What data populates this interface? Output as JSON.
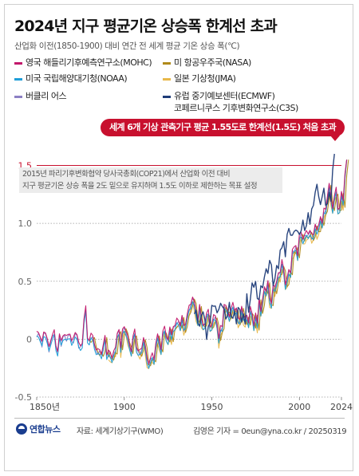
{
  "header": {
    "title": "2024년 지구 평균기온 상승폭 한계선 초과",
    "subtitle": "산업화 이전(1850-1900) 대비 연간 전 세계 평균 기온 상승 폭(℃)"
  },
  "callout": "세계 6개 기상 관측기구 평균 1.55도로 한계선(1.5도) 처음 초과",
  "note": {
    "line1": "2015년 파리기후변화협약 당사국총회(COP21)에서 산업화 이전 대비",
    "line2": "지구 평균기온 상승 폭을 2도 밑으로 유지하며 1.5도 이하로 제한하는 목표 설정"
  },
  "footer": {
    "logo": "연합뉴스",
    "source": "자료: 세계기상기구(WMO)",
    "credit": "김영은 기자 = 0eun@yna.co.kr / 20250319"
  },
  "colors": {
    "MOHC": "#c2186b",
    "NASA": "#b08a1a",
    "NOAA": "#1f9ed8",
    "JMA": "#e8b84a",
    "Berkeley": "#8c80c4",
    "ECMWF": "#1f3c78",
    "threshold": "#c8102e"
  },
  "chart_data": {
    "type": "line",
    "title": "2024년 지구 평균기온 상승폭 한계선 초과",
    "subtitle": "산업화 이전(1850-1900) 대비 연간 전 세계 평균 기온 상승 폭(℃)",
    "xlabel": "",
    "ylabel": "",
    "xlim": [
      1850,
      2024
    ],
    "ylim": [
      -0.5,
      1.6
    ],
    "x_ticks": [
      {
        "value": 1850,
        "label": "1850년"
      },
      {
        "value": 1900,
        "label": "1900"
      },
      {
        "value": 1950,
        "label": "1950"
      },
      {
        "value": 2000,
        "label": "2000"
      },
      {
        "value": 2024,
        "label": "2024"
      }
    ],
    "y_ticks": [
      {
        "value": -0.5,
        "label": "-0.5"
      },
      {
        "value": 0,
        "label": "0"
      },
      {
        "value": 0.5,
        "label": "0.5"
      },
      {
        "value": 1.0,
        "label": "1.0"
      },
      {
        "value": 1.5,
        "label": "1.5"
      }
    ],
    "threshold": {
      "value": 1.5,
      "label": "1.5"
    },
    "grid": "horizontal-dotted",
    "legend_position": "top",
    "series": [
      {
        "name": "영국 해들리기후예측연구소(MOHC)",
        "key": "MOHC",
        "start": 1850,
        "offset": 0.02,
        "values": [
          0.03,
          0.05,
          0.0,
          -0.05,
          0.06,
          0.04,
          -0.02,
          -0.1,
          -0.02,
          0.02,
          0.05,
          -0.06,
          -0.12,
          0.02,
          -0.05,
          0.02,
          0.02,
          0.0,
          0.04,
          0.03,
          -0.04,
          -0.02,
          0.05,
          0.02,
          -0.06,
          -0.06,
          -0.05,
          0.15,
          0.25,
          0.0,
          -0.03,
          0.02,
          0.03,
          -0.06,
          -0.12,
          -0.12,
          -0.1,
          -0.15,
          -0.08,
          0.03,
          -0.15,
          -0.12,
          -0.15,
          -0.17,
          -0.12,
          -0.1,
          0.05,
          0.07,
          -0.1,
          0.05,
          0.1,
          0.05,
          0.0,
          -0.05,
          -0.12,
          0.0,
          0.05,
          -0.08,
          -0.12,
          -0.12,
          -0.08,
          0.0,
          -0.08,
          -0.2,
          -0.22,
          -0.18,
          -0.15,
          -0.18,
          -0.05,
          0.02,
          -0.05,
          -0.1,
          0.05,
          0.08,
          0.02,
          -0.02,
          0.08,
          0.0,
          0.1,
          0.1,
          0.15,
          0.16,
          0.1,
          0.18,
          0.08,
          0.12,
          0.2,
          0.26,
          0.3,
          0.35,
          0.3,
          0.2,
          0.15,
          0.28,
          0.15,
          0.12,
          0.12,
          0.2,
          0.22,
          0.1,
          0.1,
          0.18,
          0.2,
          0.12,
          -0.02,
          0.08,
          0.1,
          0.28,
          0.26,
          0.25,
          0.18,
          0.24,
          0.28,
          0.24,
          0.25,
          0.15,
          0.17,
          0.27,
          0.18,
          0.15,
          0.2,
          0.12,
          0.25,
          0.22,
          0.1,
          0.2,
          0.1,
          0.35,
          0.22,
          0.32,
          0.45,
          0.4,
          0.48,
          0.32,
          0.3,
          0.45,
          0.42,
          0.5,
          0.56,
          0.55,
          0.65,
          0.6,
          0.45,
          0.5,
          0.6,
          0.56,
          0.75,
          0.76,
          0.8,
          0.7,
          0.88,
          0.92,
          0.85,
          0.88,
          0.9,
          0.9,
          0.92,
          0.88,
          0.9,
          0.98,
          0.92,
          0.95,
          1.05,
          0.98,
          1.1,
          1.12,
          1.22,
          1.32,
          1.2,
          1.12,
          1.22,
          1.28,
          1.12,
          1.12,
          1.25,
          1.16,
          1.42,
          1.55
        ]
      },
      {
        "name": "미 항공우주국(NASA)",
        "key": "NASA",
        "start": 1880,
        "offset": -0.01,
        "values": [
          0.0,
          -0.03,
          0.02,
          0.03,
          -0.06,
          -0.12,
          -0.12,
          -0.1,
          -0.15,
          -0.08,
          0.03,
          -0.15,
          -0.12,
          -0.15,
          -0.17,
          -0.12,
          -0.1,
          0.05,
          0.07,
          -0.1,
          0.05,
          0.1,
          0.05,
          0.0,
          -0.05,
          -0.12,
          0.0,
          0.05,
          -0.08,
          -0.12,
          -0.12,
          -0.08,
          0.0,
          -0.08,
          -0.2,
          -0.22,
          -0.18,
          -0.15,
          -0.18,
          -0.05,
          0.02,
          -0.05,
          -0.1,
          0.05,
          0.08,
          0.02,
          -0.02,
          0.08,
          0.0,
          0.1,
          0.1,
          0.15,
          0.16,
          0.1,
          0.18,
          0.08,
          0.12,
          0.2,
          0.26,
          0.3,
          0.35,
          0.3,
          0.2,
          0.15,
          0.28,
          0.15,
          0.12,
          0.12,
          0.2,
          0.22,
          0.1,
          0.1,
          0.18,
          0.2,
          0.12,
          -0.02,
          0.08,
          0.1,
          0.28,
          0.26,
          0.25,
          0.18,
          0.24,
          0.28,
          0.24,
          0.25,
          0.15,
          0.17,
          0.27,
          0.18,
          0.15,
          0.2,
          0.12,
          0.25,
          0.22,
          0.1,
          0.2,
          0.1,
          0.35,
          0.22,
          0.32,
          0.45,
          0.4,
          0.48,
          0.32,
          0.3,
          0.45,
          0.42,
          0.5,
          0.56,
          0.55,
          0.65,
          0.6,
          0.45,
          0.5,
          0.6,
          0.56,
          0.75,
          0.76,
          0.8,
          0.7,
          0.88,
          0.92,
          0.85,
          0.88,
          0.9,
          0.9,
          0.92,
          0.88,
          0.9,
          0.98,
          0.92,
          0.95,
          1.05,
          0.98,
          1.1,
          1.12,
          1.22,
          1.32,
          1.2,
          1.12,
          1.22,
          1.28,
          1.12,
          1.12,
          1.25,
          1.16,
          1.42,
          1.55
        ]
      },
      {
        "name": "미국 국립해양대기청(NOAA)",
        "key": "NOAA",
        "start": 1850,
        "offset": -0.02,
        "values": [
          0.03,
          0.05,
          0.0,
          -0.05,
          0.06,
          0.04,
          -0.02,
          -0.1,
          -0.02,
          0.02,
          0.05,
          -0.06,
          -0.12,
          0.02,
          -0.05,
          0.02,
          0.02,
          0.0,
          0.04,
          0.03,
          -0.04,
          -0.02,
          0.05,
          0.02,
          -0.06,
          -0.06,
          -0.05,
          0.15,
          0.25,
          0.0,
          -0.03,
          0.02,
          0.03,
          -0.06,
          -0.12,
          -0.12,
          -0.1,
          -0.15,
          -0.08,
          0.03,
          -0.15,
          -0.12,
          -0.15,
          -0.17,
          -0.12,
          -0.1,
          0.05,
          0.07,
          -0.1,
          0.05,
          0.1,
          0.05,
          0.0,
          -0.05,
          -0.12,
          0.0,
          0.05,
          -0.08,
          -0.12,
          -0.12,
          -0.08,
          0.0,
          -0.08,
          -0.2,
          -0.22,
          -0.18,
          -0.15,
          -0.18,
          -0.05,
          0.02,
          -0.05,
          -0.1,
          0.05,
          0.08,
          0.02,
          -0.02,
          0.08,
          0.0,
          0.1,
          0.1,
          0.15,
          0.16,
          0.1,
          0.18,
          0.08,
          0.12,
          0.2,
          0.26,
          0.3,
          0.35,
          0.3,
          0.2,
          0.15,
          0.28,
          0.15,
          0.12,
          0.12,
          0.2,
          0.22,
          0.1,
          0.1,
          0.18,
          0.2,
          0.12,
          -0.02,
          0.08,
          0.1,
          0.28,
          0.26,
          0.25,
          0.18,
          0.24,
          0.28,
          0.24,
          0.25,
          0.15,
          0.17,
          0.27,
          0.18,
          0.15,
          0.2,
          0.12,
          0.25,
          0.22,
          0.1,
          0.2,
          0.1,
          0.35,
          0.22,
          0.32,
          0.45,
          0.4,
          0.48,
          0.32,
          0.3,
          0.45,
          0.42,
          0.5,
          0.56,
          0.55,
          0.65,
          0.6,
          0.45,
          0.5,
          0.6,
          0.56,
          0.75,
          0.76,
          0.8,
          0.7,
          0.88,
          0.92,
          0.85,
          0.88,
          0.9,
          0.9,
          0.92,
          0.88,
          0.9,
          0.98,
          0.92,
          0.95,
          1.05,
          0.98,
          1.1,
          1.12,
          1.22,
          1.32,
          1.2,
          1.12,
          1.22,
          1.28,
          1.12,
          1.12,
          1.25,
          1.16,
          1.42,
          1.55
        ]
      },
      {
        "name": "일본 기상청(JMA)",
        "key": "JMA",
        "start": 1891,
        "offset": -0.04,
        "values": [
          -0.12,
          -0.15,
          -0.17,
          -0.12,
          -0.1,
          0.05,
          0.07,
          -0.1,
          0.05,
          0.1,
          0.05,
          0.0,
          -0.05,
          -0.12,
          0.0,
          0.05,
          -0.08,
          -0.12,
          -0.12,
          -0.08,
          0.0,
          -0.08,
          -0.2,
          -0.22,
          -0.18,
          -0.15,
          -0.18,
          -0.05,
          0.02,
          -0.05,
          -0.1,
          0.05,
          0.08,
          0.02,
          -0.02,
          0.08,
          0.0,
          0.1,
          0.1,
          0.15,
          0.16,
          0.1,
          0.18,
          0.08,
          0.12,
          0.2,
          0.26,
          0.3,
          0.35,
          0.3,
          0.2,
          0.15,
          0.28,
          0.15,
          0.12,
          0.12,
          0.2,
          0.22,
          0.1,
          0.1,
          0.18,
          0.2,
          0.12,
          -0.02,
          0.08,
          0.1,
          0.28,
          0.26,
          0.25,
          0.18,
          0.24,
          0.28,
          0.24,
          0.25,
          0.15,
          0.17,
          0.27,
          0.18,
          0.15,
          0.2,
          0.12,
          0.25,
          0.22,
          0.1,
          0.2,
          0.1,
          0.35,
          0.22,
          0.32,
          0.45,
          0.4,
          0.48,
          0.32,
          0.3,
          0.45,
          0.42,
          0.5,
          0.56,
          0.55,
          0.65,
          0.6,
          0.45,
          0.5,
          0.6,
          0.56,
          0.75,
          0.76,
          0.8,
          0.7,
          0.88,
          0.92,
          0.85,
          0.88,
          0.9,
          0.9,
          0.92,
          0.88,
          0.9,
          0.98,
          0.92,
          0.95,
          1.05,
          0.98,
          1.1,
          1.12,
          1.22,
          1.32,
          1.2,
          1.12,
          1.22,
          1.28,
          1.12,
          1.12,
          1.25,
          1.16,
          1.42,
          1.55
        ]
      },
      {
        "name": "버클리 어스",
        "key": "Berkeley",
        "start": 1850,
        "offset": 0.0,
        "values": [
          0.03,
          0.05,
          0.0,
          -0.05,
          0.06,
          0.04,
          -0.02,
          -0.1,
          -0.02,
          0.02,
          0.05,
          -0.06,
          -0.12,
          0.02,
          -0.05,
          0.02,
          0.02,
          0.0,
          0.04,
          0.03,
          -0.04,
          -0.02,
          0.05,
          0.02,
          -0.06,
          -0.06,
          -0.05,
          0.15,
          0.25,
          0.0,
          -0.03,
          0.02,
          0.03,
          -0.06,
          -0.12,
          -0.12,
          -0.1,
          -0.15,
          -0.08,
          0.03,
          -0.15,
          -0.12,
          -0.15,
          -0.17,
          -0.12,
          -0.1,
          0.05,
          0.07,
          -0.1,
          0.05,
          0.1,
          0.05,
          0.0,
          -0.05,
          -0.12,
          0.0,
          0.05,
          -0.08,
          -0.12,
          -0.12,
          -0.08,
          0.0,
          -0.08,
          -0.2,
          -0.22,
          -0.18,
          -0.15,
          -0.18,
          -0.05,
          0.02,
          -0.05,
          -0.1,
          0.05,
          0.08,
          0.02,
          -0.02,
          0.08,
          0.0,
          0.1,
          0.1,
          0.15,
          0.16,
          0.1,
          0.18,
          0.08,
          0.12,
          0.2,
          0.26,
          0.3,
          0.35,
          0.3,
          0.2,
          0.15,
          0.28,
          0.15,
          0.12,
          0.12,
          0.2,
          0.22,
          0.1,
          0.1,
          0.18,
          0.2,
          0.12,
          -0.02,
          0.08,
          0.1,
          0.28,
          0.26,
          0.25,
          0.18,
          0.24,
          0.28,
          0.24,
          0.25,
          0.15,
          0.17,
          0.27,
          0.18,
          0.15,
          0.2,
          0.12,
          0.25,
          0.22,
          0.1,
          0.2,
          0.1,
          0.35,
          0.22,
          0.32,
          0.45,
          0.4,
          0.48,
          0.32,
          0.3,
          0.45,
          0.42,
          0.5,
          0.56,
          0.55,
          0.65,
          0.6,
          0.45,
          0.5,
          0.6,
          0.56,
          0.75,
          0.76,
          0.8,
          0.7,
          0.88,
          0.92,
          0.85,
          0.88,
          0.9,
          0.9,
          0.92,
          0.88,
          0.9,
          0.98,
          0.92,
          0.95,
          1.05,
          0.98,
          1.1,
          1.12,
          1.22,
          1.32,
          1.2,
          1.12,
          1.22,
          1.28,
          1.12,
          1.12,
          1.25,
          1.16,
          1.42,
          1.55
        ]
      },
      {
        "name": "유럽 중기예보센터(ECMWF) 코페르니쿠스 기후변화연구소(C3S)",
        "name_line1": "유럽 중기예보센터(ECMWF)",
        "name_line2": "코페르니쿠스 기후변화연구소(C3S)",
        "key": "ECMWF",
        "start": 1940,
        "offset": 0.03,
        "values": [
          0.2,
          0.22,
          0.1,
          0.1,
          0.18,
          0.2,
          0.12,
          -0.02,
          0.08,
          0.1,
          0.28,
          0.26,
          0.25,
          0.18,
          0.24,
          0.28,
          0.24,
          0.25,
          0.15,
          0.17,
          0.27,
          0.18,
          0.15,
          0.2,
          0.12,
          0.25,
          0.22,
          0.1,
          0.2,
          0.1,
          0.35,
          0.22,
          0.32,
          0.45,
          0.4,
          0.48,
          0.32,
          0.3,
          0.45,
          0.42,
          0.5,
          0.56,
          0.55,
          0.65,
          0.6,
          0.45,
          0.5,
          0.6,
          0.56,
          0.75,
          0.76,
          0.8,
          0.7,
          0.88,
          0.92,
          0.85,
          0.88,
          0.9,
          0.9,
          0.92,
          0.88,
          0.9,
          0.98,
          0.92,
          0.95,
          1.05,
          0.98,
          1.1,
          1.12,
          1.22,
          1.32,
          1.2,
          1.12,
          1.22,
          1.28,
          1.12,
          1.12,
          1.25,
          1.16,
          1.42,
          1.6
        ]
      }
    ]
  }
}
